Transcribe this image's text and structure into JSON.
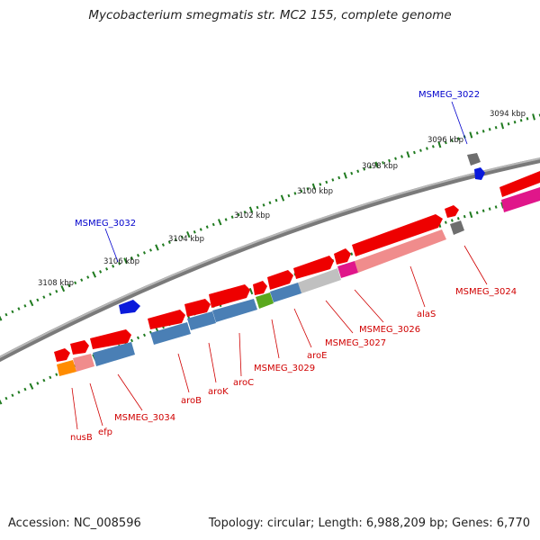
{
  "title": "Mycobacterium smegmatis str. MC2 155, complete genome",
  "footer": {
    "accession": "Accession: NC_008596",
    "topology": "Topology: circular; Length: 6,988,209 bp; Genes: 6,770"
  },
  "scale_ticks": [
    {
      "label": "3094 kbp"
    },
    {
      "label": "3096 kbp"
    },
    {
      "label": "3098 kbp"
    },
    {
      "label": "3100 kbp"
    },
    {
      "label": "3102 kbp"
    },
    {
      "label": "3104 kbp"
    },
    {
      "label": "3106 kbp"
    },
    {
      "label": "3108 kbp"
    }
  ],
  "gene_labels": [
    {
      "text": "MSMEG_3022",
      "color": "#0000cc"
    },
    {
      "text": "MSMEG_3032",
      "color": "#0000cc"
    },
    {
      "text": "MSMEG_3024",
      "color": "#d00000"
    },
    {
      "text": "alaS",
      "color": "#d00000"
    },
    {
      "text": "MSMEG_3026",
      "color": "#d00000"
    },
    {
      "text": "MSMEG_3027",
      "color": "#d00000"
    },
    {
      "text": "aroE",
      "color": "#d00000"
    },
    {
      "text": "MSMEG_3029",
      "color": "#d00000"
    },
    {
      "text": "aroC",
      "color": "#d00000"
    },
    {
      "text": "aroK",
      "color": "#d00000"
    },
    {
      "text": "aroB",
      "color": "#d00000"
    },
    {
      "text": "MSMEG_3034",
      "color": "#d00000"
    },
    {
      "text": "efp",
      "color": "#d00000"
    },
    {
      "text": "nusB",
      "color": "#d00000"
    }
  ],
  "colors": {
    "cds_arrow": "#ee0000",
    "backbone": "#888888",
    "tick_green": "#1f7a1f",
    "blue_gene": "#0a1adb",
    "gray_gene": "#6e6e6e",
    "steelblue_class": "#4a7fb5",
    "pink_class": "#f08c8c",
    "lightgray_class": "#c0c0c0",
    "magenta_class": "#e0168a",
    "green_class": "#5aa81e",
    "orange_class": "#ff8c00"
  }
}
